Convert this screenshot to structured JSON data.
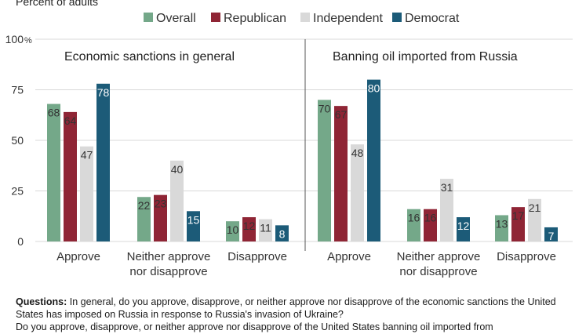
{
  "chart_data": {
    "type": "bar",
    "ylabel": "Percent of adults",
    "ylim": [
      0,
      100
    ],
    "yticks": [
      0,
      25,
      50,
      75,
      100
    ],
    "ytick_labels": [
      "0",
      "25",
      "50",
      "75",
      "100"
    ],
    "y_unit": "%",
    "legend_position": "top",
    "grid": true,
    "series_names": [
      "Overall",
      "Republican",
      "Independent",
      "Democrat"
    ],
    "colors": [
      "#74a889",
      "#8f2535",
      "#d9d9d9",
      "#1c5b78"
    ],
    "panels": [
      {
        "title": "Economic sanctions in general",
        "categories": [
          "Approve",
          "Neither approve nor disapprove",
          "Disapprove"
        ],
        "category_lines": [
          [
            "Approve"
          ],
          [
            "Neither approve",
            "nor disapprove"
          ],
          [
            "Disapprove"
          ]
        ],
        "series": [
          {
            "name": "Overall",
            "values": [
              68,
              22,
              10
            ]
          },
          {
            "name": "Republican",
            "values": [
              64,
              23,
              12
            ]
          },
          {
            "name": "Independent",
            "values": [
              47,
              40,
              11
            ]
          },
          {
            "name": "Democrat",
            "values": [
              78,
              15,
              8
            ]
          }
        ]
      },
      {
        "title": "Banning oil imported from Russia",
        "categories": [
          "Approve",
          "Neither approve nor disapprove",
          "Disapprove"
        ],
        "category_lines": [
          [
            "Approve"
          ],
          [
            "Neither approve",
            "nor disapprove"
          ],
          [
            "Disapprove"
          ]
        ],
        "series": [
          {
            "name": "Overall",
            "values": [
              70,
              16,
              13
            ]
          },
          {
            "name": "Republican",
            "values": [
              67,
              16,
              17
            ]
          },
          {
            "name": "Independent",
            "values": [
              48,
              31,
              21
            ]
          },
          {
            "name": "Democrat",
            "values": [
              80,
              12,
              7
            ]
          }
        ]
      }
    ]
  },
  "notes": {
    "questions_label": "Questions:",
    "line1": "In general, do you approve, disapprove, or neither approve nor disapprove of the economic sanctions the United States has imposed on Russia in response to Russia's invasion of Ukraine?",
    "line2": "Do you approve, disapprove, or neither approve nor disapprove of the United States banning oil imported from"
  }
}
